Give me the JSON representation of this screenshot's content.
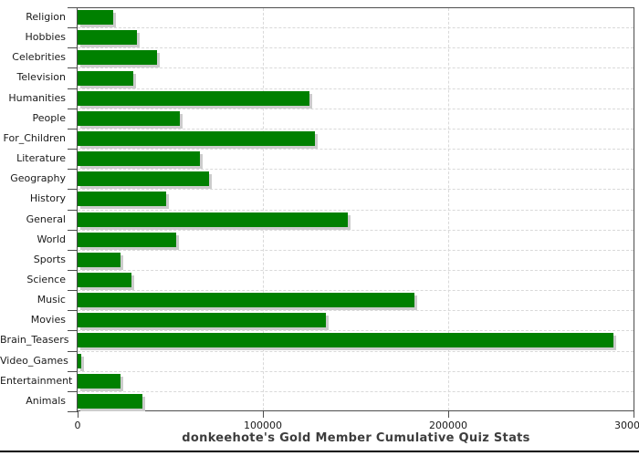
{
  "chart_data": {
    "type": "bar",
    "orientation": "horizontal",
    "title": "donkeehote's Gold Member Cumulative Quiz Stats",
    "categories": [
      "Religion",
      "Hobbies",
      "Celebrities",
      "Television",
      "Humanities",
      "People",
      "For_Children",
      "Literature",
      "Geography",
      "History",
      "General",
      "World",
      "Sports",
      "Science",
      "Music",
      "Movies",
      "Brain_Teasers",
      "Video_Games",
      "Entertainment",
      "Animals"
    ],
    "values": [
      19000,
      32000,
      43000,
      30000,
      125000,
      55000,
      128000,
      66000,
      71000,
      48000,
      146000,
      53000,
      23000,
      29000,
      182000,
      134000,
      289000,
      2000,
      23000,
      35000
    ],
    "xlabel": "",
    "ylabel": "",
    "xlim": [
      0,
      300000
    ],
    "x_ticks": [
      0,
      100000,
      200000,
      300000
    ],
    "x_tick_labels": [
      "0",
      "100000",
      "200000",
      "300000"
    ],
    "grid": "dashed",
    "legend": "none"
  },
  "colors": {
    "bar": "#008000",
    "bar_shadow": "#cccccc",
    "grid": "#d9d9d9",
    "frame": "#4d4d4d",
    "axis_text": "#1a1a1a",
    "title_text": "#3d3d3d",
    "bottom_rule": "#000000"
  }
}
